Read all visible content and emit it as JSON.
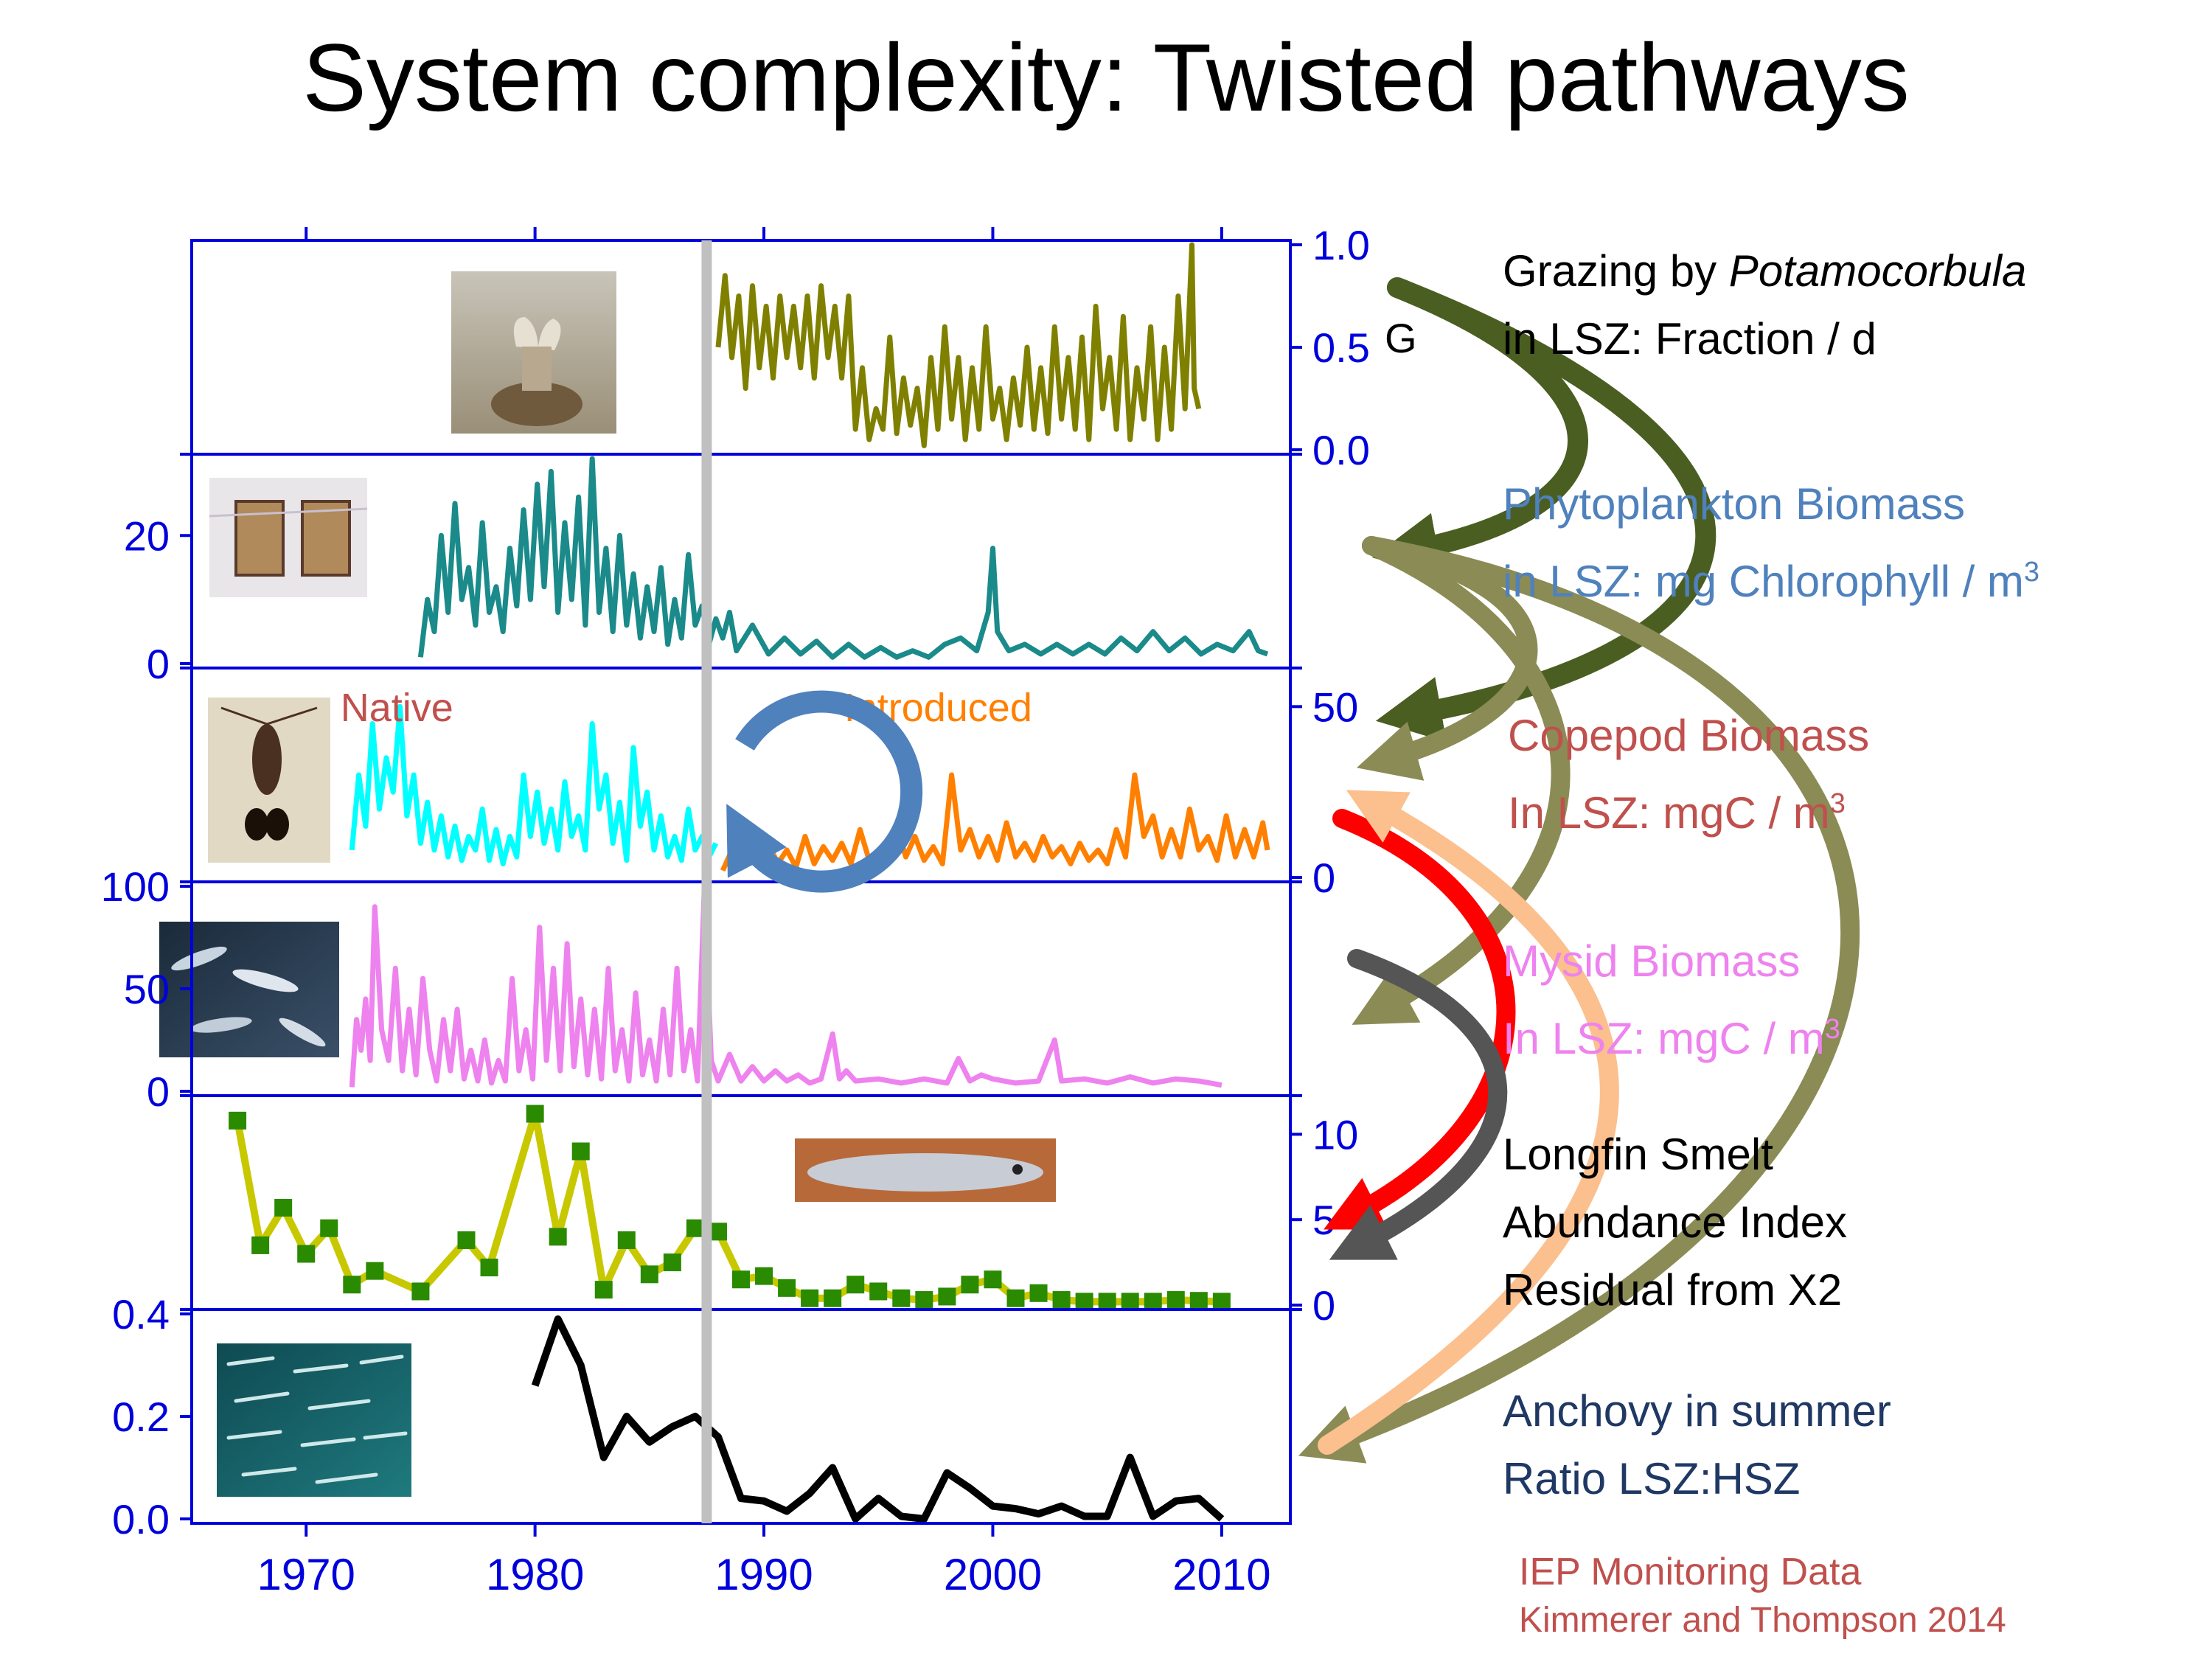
{
  "slide": {
    "title": "System complexity: Twisted pathways",
    "credits": [
      "IEP Monitoring Data",
      "Kimmerer and Thompson 2014"
    ]
  },
  "colors": {
    "axis": "#0000dd",
    "grazing": "#808000",
    "phyto": "#1a8a8a",
    "copepod_native": "#00ffff",
    "copepod_introduced": "#ff8000",
    "mysid": "#ee82ee",
    "smelt_line": "#c8c800",
    "smelt_marker": "#2a8a00",
    "anchovy": "#000000",
    "divider": "#c0c0c0",
    "arrow_olive": "#8b8b55",
    "arrow_dark_olive": "#4a5e22",
    "arrow_red": "#ff0000",
    "arrow_grey": "#555555",
    "arrow_peach": "#fbc08e",
    "cycle_arrow": "#4f81bd"
  },
  "labels": [
    {
      "id": "grazing",
      "lines": [
        "Grazing by ",
        "Potamocorbula",
        "in LSZ: Fraction / d"
      ],
      "color": "#000000"
    },
    {
      "id": "phyto",
      "lines": [
        "Phytoplankton Biomass",
        "in LSZ: mg Chlorophyll / m",
        "3"
      ],
      "color": "#4f81bd"
    },
    {
      "id": "copepod",
      "lines": [
        "Copepod Biomass",
        "In LSZ: mgC / m",
        "3"
      ],
      "color": "#c0504d"
    },
    {
      "id": "mysid",
      "lines": [
        "Mysid Biomass",
        "In LSZ: mgC / m",
        "3"
      ],
      "color": "#ee82ee"
    },
    {
      "id": "smelt",
      "lines": [
        "Longfin Smelt",
        "Abundance Index",
        "Residual from X2"
      ],
      "color": "#000000"
    },
    {
      "id": "anchovy",
      "lines": [
        "Anchovy in summer",
        "Ratio LSZ:HSZ"
      ],
      "color": "#1f3864"
    }
  ],
  "chart_data": [
    {
      "id": "grazing",
      "type": "line",
      "ylabel": "Grazing by Potamocorbula in LSZ: Fraction / d",
      "axis_side": "right",
      "ylim": [
        0,
        1.0
      ],
      "ticks": [
        "0.0",
        "0.5",
        "1.0"
      ],
      "x": [
        1988.0,
        1988.3,
        1988.6,
        1988.9,
        1989.2,
        1989.5,
        1989.8,
        1990.1,
        1990.4,
        1990.7,
        1991.0,
        1991.3,
        1991.6,
        1991.9,
        1992.2,
        1992.5,
        1992.8,
        1993.1,
        1993.4,
        1993.7,
        1994.0,
        1994.3,
        1994.6,
        1994.9,
        1995.2,
        1995.5,
        1995.8,
        1996.1,
        1996.4,
        1996.7,
        1997.0,
        1997.3,
        1997.6,
        1997.9,
        1998.2,
        1998.5,
        1998.8,
        1999.1,
        1999.4,
        1999.7,
        2000.0,
        2000.3,
        2000.6,
        2000.9,
        2001.2,
        2001.5,
        2001.8,
        2002.1,
        2002.4,
        2002.7,
        2003.0,
        2003.3,
        2003.6,
        2003.9,
        2004.2,
        2004.5,
        2004.8,
        2005.1,
        2005.4,
        2005.7,
        2006.0,
        2006.3,
        2006.6,
        2006.9,
        2007.2,
        2007.5,
        2007.8,
        2008.1,
        2008.4,
        2008.7,
        2008.8,
        2009.0
      ],
      "y": [
        0.5,
        0.85,
        0.45,
        0.75,
        0.3,
        0.8,
        0.4,
        0.7,
        0.35,
        0.75,
        0.45,
        0.7,
        0.4,
        0.75,
        0.35,
        0.8,
        0.45,
        0.7,
        0.35,
        0.75,
        0.1,
        0.4,
        0.05,
        0.2,
        0.1,
        0.55,
        0.08,
        0.35,
        0.12,
        0.3,
        0.02,
        0.45,
        0.1,
        0.6,
        0.15,
        0.45,
        0.05,
        0.4,
        0.1,
        0.6,
        0.15,
        0.3,
        0.05,
        0.35,
        0.12,
        0.5,
        0.1,
        0.4,
        0.08,
        0.6,
        0.15,
        0.45,
        0.1,
        0.55,
        0.05,
        0.7,
        0.2,
        0.45,
        0.1,
        0.65,
        0.05,
        0.4,
        0.15,
        0.6,
        0.05,
        0.5,
        0.1,
        0.75,
        0.2,
        1.0,
        0.3,
        0.2
      ]
    },
    {
      "id": "phytoplankton",
      "type": "line",
      "ylabel": "Phytoplankton Biomass in LSZ: mg Chlorophyll / m3",
      "axis_side": "left",
      "ylim": [
        0,
        32
      ],
      "ticks": [
        "0",
        "20"
      ],
      "x": [
        1975.0,
        1975.3,
        1975.6,
        1975.9,
        1976.2,
        1976.5,
        1976.8,
        1977.1,
        1977.4,
        1977.7,
        1978.0,
        1978.3,
        1978.6,
        1978.9,
        1979.2,
        1979.5,
        1979.8,
        1980.1,
        1980.4,
        1980.7,
        1981.0,
        1981.3,
        1981.6,
        1981.9,
        1982.2,
        1982.5,
        1982.8,
        1983.1,
        1983.4,
        1983.7,
        1984.0,
        1984.3,
        1984.6,
        1984.9,
        1985.2,
        1985.5,
        1985.8,
        1986.1,
        1986.4,
        1986.7,
        1987.0,
        1987.3,
        1987.6,
        1987.9,
        1988.2,
        1988.5,
        1988.8,
        1989.5,
        1990.2,
        1990.9,
        1991.6,
        1992.3,
        1993.0,
        1993.7,
        1994.4,
        1995.1,
        1995.8,
        1996.5,
        1997.2,
        1997.9,
        1998.6,
        1999.3,
        1999.8,
        2000.0,
        2000.2,
        2000.7,
        2001.4,
        2002.1,
        2002.8,
        2003.5,
        2004.2,
        2004.9,
        2005.6,
        2006.3,
        2007.0,
        2007.7,
        2008.4,
        2009.1,
        2009.8,
        2010.5,
        2011.2,
        2011.6,
        2012.0
      ],
      "y": [
        1,
        10,
        5,
        20,
        8,
        25,
        10,
        15,
        6,
        22,
        8,
        12,
        5,
        18,
        9,
        24,
        10,
        28,
        12,
        30,
        8,
        22,
        10,
        26,
        6,
        32,
        8,
        18,
        5,
        20,
        6,
        14,
        4,
        12,
        5,
        15,
        3,
        10,
        4,
        17,
        6,
        9,
        3,
        7,
        4,
        8,
        2,
        6,
        1.5,
        4,
        1.5,
        3.5,
        1,
        3,
        1,
        2.5,
        1,
        2,
        1,
        3,
        4,
        2,
        8,
        18,
        5,
        2,
        3,
        1.5,
        3,
        1.5,
        3,
        1.5,
        4,
        2,
        5,
        2,
        4,
        1.5,
        3,
        2,
        5,
        2,
        1.5
      ]
    },
    {
      "id": "copepod",
      "type": "line",
      "ylabel": "Copepod Biomass In LSZ: mgC / m3",
      "axis_side": "right",
      "ylim": [
        0,
        60
      ],
      "ticks": [
        "0",
        "50"
      ],
      "series": [
        {
          "name": "Native",
          "x": [
            1972.0,
            1972.3,
            1972.6,
            1972.9,
            1973.2,
            1973.5,
            1973.8,
            1974.1,
            1974.4,
            1974.7,
            1975.0,
            1975.3,
            1975.6,
            1975.9,
            1976.2,
            1976.5,
            1976.8,
            1977.1,
            1977.4,
            1977.7,
            1978.0,
            1978.3,
            1978.6,
            1978.9,
            1979.2,
            1979.5,
            1979.8,
            1980.1,
            1980.4,
            1980.7,
            1981.0,
            1981.3,
            1981.6,
            1981.9,
            1982.2,
            1982.5,
            1982.8,
            1983.1,
            1983.4,
            1983.7,
            1984.0,
            1984.3,
            1984.6,
            1984.9,
            1985.2,
            1985.5,
            1985.8,
            1986.1,
            1986.4,
            1986.7,
            1987.0,
            1987.3,
            1987.6,
            1987.9
          ],
          "y": [
            8,
            30,
            15,
            45,
            20,
            35,
            25,
            50,
            18,
            30,
            10,
            22,
            8,
            18,
            6,
            15,
            5,
            12,
            8,
            20,
            5,
            14,
            4,
            12,
            6,
            30,
            12,
            25,
            10,
            20,
            8,
            28,
            12,
            18,
            8,
            45,
            20,
            30,
            10,
            22,
            5,
            38,
            15,
            25,
            8,
            18,
            6,
            12,
            5,
            20,
            8,
            12,
            6,
            10
          ]
        },
        {
          "name": "Introduced",
          "x": [
            1988.2,
            1988.6,
            1989.0,
            1989.4,
            1989.8,
            1990.2,
            1990.6,
            1991.0,
            1991.4,
            1991.8,
            1992.2,
            1992.6,
            1993.0,
            1993.4,
            1993.8,
            1994.2,
            1994.6,
            1995.0,
            1995.4,
            1995.8,
            1996.2,
            1996.6,
            1997.0,
            1997.4,
            1997.8,
            1998.2,
            1998.6,
            1999.0,
            1999.4,
            1999.8,
            2000.2,
            2000.6,
            2001.0,
            2001.4,
            2001.8,
            2002.2,
            2002.6,
            2003.0,
            2003.4,
            2003.8,
            2004.2,
            2004.6,
            2005.0,
            2005.4,
            2005.8,
            2006.2,
            2006.6,
            2007.0,
            2007.4,
            2007.8,
            2008.2,
            2008.6,
            2009.0,
            2009.4,
            2009.8,
            2010.2,
            2010.6,
            2011.0,
            2011.4,
            2011.8,
            2012.0
          ],
          "y": [
            2,
            8,
            4,
            12,
            5,
            10,
            4,
            8,
            3,
            12,
            4,
            9,
            5,
            10,
            4,
            14,
            5,
            8,
            4,
            15,
            6,
            12,
            5,
            9,
            4,
            30,
            8,
            14,
            6,
            12,
            5,
            16,
            6,
            10,
            5,
            12,
            6,
            9,
            4,
            10,
            5,
            8,
            4,
            14,
            6,
            30,
            12,
            18,
            6,
            14,
            6,
            20,
            8,
            12,
            5,
            18,
            6,
            14,
            6,
            16,
            8
          ]
        }
      ],
      "legend": [
        "Native",
        "Introduced"
      ]
    },
    {
      "id": "mysid",
      "type": "line",
      "ylabel": "Mysid Biomass In LSZ: mgC / m3",
      "axis_side": "left",
      "ylim": [
        0,
        100
      ],
      "ticks": [
        "0",
        "50",
        "100"
      ],
      "x": [
        1972.0,
        1972.2,
        1972.4,
        1972.6,
        1972.8,
        1973.0,
        1973.3,
        1973.6,
        1973.9,
        1974.2,
        1974.5,
        1974.8,
        1975.1,
        1975.4,
        1975.7,
        1976.0,
        1976.3,
        1976.6,
        1976.9,
        1977.2,
        1977.5,
        1977.8,
        1978.1,
        1978.4,
        1978.7,
        1979.0,
        1979.3,
        1979.6,
        1979.9,
        1980.2,
        1980.5,
        1980.8,
        1981.1,
        1981.4,
        1981.7,
        1982.0,
        1982.3,
        1982.6,
        1982.9,
        1983.2,
        1983.5,
        1983.8,
        1984.1,
        1984.4,
        1984.7,
        1985.0,
        1985.3,
        1985.6,
        1985.9,
        1986.2,
        1986.5,
        1986.8,
        1987.1,
        1987.4,
        1987.7,
        1988.0,
        1988.5,
        1989.0,
        1989.5,
        1990.0,
        1990.5,
        1991.0,
        1991.5,
        1992.0,
        1992.5,
        1993.0,
        1993.3,
        1993.6,
        1994.0,
        1995.0,
        1996.0,
        1997.0,
        1998.0,
        1998.5,
        1999.0,
        1999.5,
        2000.0,
        2001.0,
        2002.0,
        2002.7,
        2003.0,
        2004.0,
        2005.0,
        2006.0,
        2007.0,
        2008.0,
        2009.0,
        2010.0
      ],
      "y": [
        2,
        35,
        20,
        45,
        15,
        90,
        30,
        15,
        60,
        10,
        40,
        8,
        55,
        20,
        5,
        35,
        10,
        40,
        6,
        20,
        5,
        25,
        4,
        15,
        5,
        55,
        10,
        30,
        6,
        80,
        15,
        60,
        10,
        72,
        12,
        45,
        8,
        40,
        6,
        60,
        10,
        30,
        5,
        48,
        8,
        25,
        5,
        40,
        8,
        60,
        10,
        30,
        5,
        100,
        15,
        5,
        18,
        5,
        12,
        5,
        10,
        5,
        8,
        4,
        6,
        28,
        6,
        10,
        5,
        6,
        4,
        6,
        4,
        16,
        5,
        8,
        6,
        4,
        5,
        25,
        5,
        6,
        4,
        7,
        4,
        6,
        5,
        3
      ]
    },
    {
      "id": "longfin_smelt",
      "type": "line",
      "ylabel": "Longfin Smelt Abundance Index Residual from X2",
      "axis_side": "right",
      "ylim": [
        0,
        12
      ],
      "ticks": [
        "0",
        "5",
        "10"
      ],
      "markers": "square",
      "x": [
        1967,
        1968,
        1969,
        1970,
        1971,
        1972,
        1973,
        1975,
        1977,
        1978,
        1980,
        1981,
        1982,
        1983,
        1984,
        1985,
        1986,
        1987,
        1988,
        1989,
        1990,
        1991,
        1992,
        1993,
        1994,
        1995,
        1996,
        1997,
        1998,
        1999,
        2000,
        2001,
        2002,
        2003,
        2004,
        2005,
        2006,
        2007,
        2008,
        2009,
        2010
      ],
      "y": [
        10.8,
        3.5,
        5.7,
        3,
        4.5,
        1.2,
        2,
        0.8,
        3.8,
        2.2,
        11.2,
        4,
        9,
        0.9,
        3.8,
        1.8,
        2.5,
        4.5,
        4.3,
        1.5,
        1.7,
        1,
        0.4,
        0.4,
        1.2,
        0.8,
        0.4,
        0.3,
        0.5,
        1.2,
        1.5,
        0.4,
        0.7,
        0.3,
        0.2,
        0.2,
        0.2,
        0.2,
        0.3,
        0.25,
        0.2
      ]
    },
    {
      "id": "anchovy",
      "type": "line",
      "ylabel": "Anchovy in summer Ratio LSZ:HSZ",
      "axis_side": "left",
      "ylim": [
        0,
        0.4
      ],
      "ticks": [
        "0.0",
        "0.2",
        "0.4"
      ],
      "x": [
        1980,
        1981,
        1982,
        1983,
        1984,
        1985,
        1986,
        1987,
        1988,
        1989,
        1990,
        1991,
        1992,
        1993,
        1994,
        1995,
        1996,
        1997,
        1998,
        1999,
        2000,
        2001,
        2002,
        2003,
        2004,
        2005,
        2006,
        2007,
        2008,
        2009,
        2010
      ],
      "y": [
        0.26,
        0.39,
        0.3,
        0.12,
        0.2,
        0.15,
        0.18,
        0.2,
        0.16,
        0.04,
        0.035,
        0.015,
        0.05,
        0.1,
        0.0,
        0.04,
        0.005,
        0.0,
        0.09,
        0.06,
        0.025,
        0.02,
        0.01,
        0.025,
        0.005,
        0.005,
        0.12,
        0.005,
        0.035,
        0.04,
        0.0
      ]
    }
  ],
  "x_axis": {
    "xlim": [
      1965,
      2013
    ],
    "tick_labels": [
      "1970",
      "1980",
      "1990",
      "2000",
      "2010"
    ],
    "divider_year": 1987.5
  },
  "images": [
    {
      "panel": "grazing",
      "name": "clam-photo"
    },
    {
      "panel": "phytoplankton",
      "name": "diatom-photo"
    },
    {
      "panel": "copepod",
      "name": "copepod-photo"
    },
    {
      "panel": "mysid",
      "name": "mysid-photo"
    },
    {
      "panel": "longfin_smelt",
      "name": "smelt-photo"
    },
    {
      "panel": "anchovy",
      "name": "anchovy-school-photo"
    }
  ]
}
